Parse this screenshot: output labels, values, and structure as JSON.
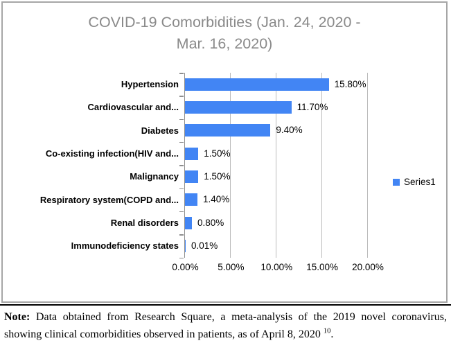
{
  "chart_data": {
    "type": "bar",
    "orientation": "horizontal",
    "title": "COVID-19 Comorbidities (Jan. 24, 2020 - Mar. 16, 2020)",
    "title_lines": [
      "COVID-19 Comorbidities (Jan. 24, 2020 -",
      "Mar. 16, 2020)"
    ],
    "categories": [
      "Hypertension",
      "Cardiovascular and...",
      "Diabetes",
      "Co-existing infection(HIV and...",
      "Malignancy",
      "Respiratory system(COPD and...",
      "Renal disorders",
      "Immunodeficiency states"
    ],
    "values": [
      15.8,
      11.7,
      9.4,
      1.5,
      1.5,
      1.4,
      0.8,
      0.01
    ],
    "data_labels": [
      "15.80%",
      "11.70%",
      "9.40%",
      "1.50%",
      "1.50%",
      "1.40%",
      "0.80%",
      "0.01%"
    ],
    "x_ticks": [
      {
        "label": "0.00%",
        "value": 0
      },
      {
        "label": "5.00%",
        "value": 5
      },
      {
        "label": "10.00%",
        "value": 10
      },
      {
        "label": "15.00%",
        "value": 15
      },
      {
        "label": "20.00%",
        "value": 20
      }
    ],
    "xlim": [
      0,
      20
    ],
    "grid": "vertical-gridlines-on",
    "legend": [
      {
        "name": "Series1"
      }
    ],
    "legend_position": "middle-right",
    "bar_color": "#4285f4",
    "title_color": "#8a8a8a"
  },
  "note": {
    "label": "Note:",
    "line1_rest": "Data obtained from Research Square, a meta-analysis of the 2019 novel coronavirus,",
    "line2_text": "showing clinical comorbidities observed in patients, as of April 8, 2020 ",
    "superscript": "10",
    "suffix": "."
  }
}
